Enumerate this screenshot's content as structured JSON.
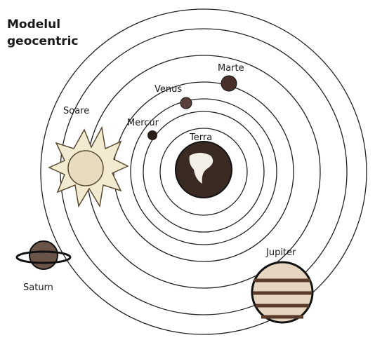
{
  "header": {
    "title_lines": [
      "Modelul",
      "geocentric"
    ]
  },
  "nodes": [
    {
      "label": "Marte"
    },
    {
      "label": "Venus"
    },
    {
      "label": "Soare"
    },
    {
      "label": "Mercur"
    },
    {
      "label": "Terra"
    },
    {
      "label": "Jupiter"
    },
    {
      "label": "Saturn"
    }
  ]
}
